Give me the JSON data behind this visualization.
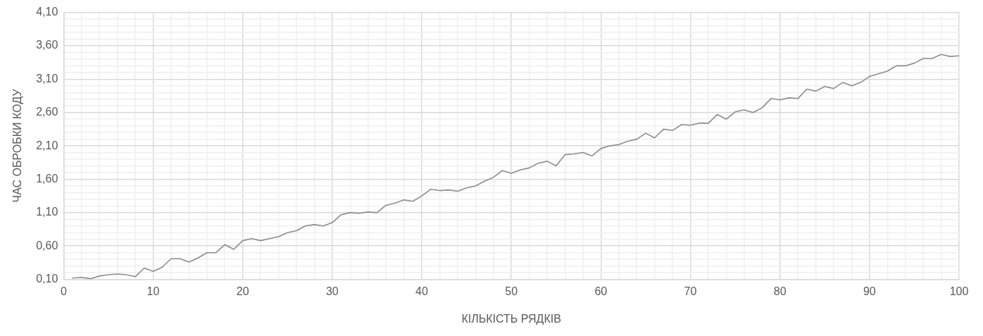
{
  "chart_data": {
    "type": "line",
    "xlabel": "КІЛЬКІСТЬ РЯДКІВ",
    "ylabel": "ЧАС ОБРОБКИ КОДУ",
    "x": [
      1,
      2,
      3,
      4,
      5,
      6,
      7,
      8,
      9,
      10,
      11,
      12,
      13,
      14,
      15,
      16,
      17,
      18,
      19,
      20,
      21,
      22,
      23,
      24,
      25,
      26,
      27,
      28,
      29,
      30,
      31,
      32,
      33,
      34,
      35,
      36,
      37,
      38,
      39,
      40,
      41,
      42,
      43,
      44,
      45,
      46,
      47,
      48,
      49,
      50,
      51,
      52,
      53,
      54,
      55,
      56,
      57,
      58,
      59,
      60,
      61,
      62,
      63,
      64,
      65,
      66,
      67,
      68,
      69,
      70,
      71,
      72,
      73,
      74,
      75,
      76,
      77,
      78,
      79,
      80,
      81,
      82,
      83,
      84,
      85,
      86,
      87,
      88,
      89,
      90,
      91,
      92,
      93,
      94,
      95,
      96,
      97,
      98,
      99,
      100
    ],
    "series": [
      {
        "color": "#8c8c8c",
        "values": [
          0.12,
          0.13,
          0.11,
          0.15,
          0.17,
          0.18,
          0.17,
          0.14,
          0.27,
          0.22,
          0.28,
          0.41,
          0.41,
          0.36,
          0.42,
          0.5,
          0.5,
          0.62,
          0.55,
          0.68,
          0.71,
          0.68,
          0.71,
          0.74,
          0.8,
          0.83,
          0.9,
          0.92,
          0.9,
          0.95,
          1.07,
          1.1,
          1.09,
          1.11,
          1.1,
          1.21,
          1.24,
          1.29,
          1.27,
          1.35,
          1.45,
          1.43,
          1.44,
          1.42,
          1.47,
          1.5,
          1.57,
          1.63,
          1.73,
          1.69,
          1.74,
          1.77,
          1.84,
          1.87,
          1.8,
          1.97,
          1.98,
          2.0,
          1.95,
          2.06,
          2.1,
          2.12,
          2.17,
          2.2,
          2.29,
          2.22,
          2.35,
          2.33,
          2.42,
          2.41,
          2.44,
          2.44,
          2.57,
          2.5,
          2.61,
          2.64,
          2.6,
          2.67,
          2.81,
          2.79,
          2.82,
          2.81,
          2.95,
          2.92,
          2.99,
          2.96,
          3.05,
          3.0,
          3.05,
          3.14,
          3.18,
          3.22,
          3.3,
          3.3,
          3.34,
          3.41,
          3.41,
          3.47,
          3.44,
          3.45
        ]
      }
    ],
    "xlim": [
      0,
      100
    ],
    "xticks": [
      0,
      {
        "value": 2,
        "label": null
      },
      {
        "value": 4,
        "label": null
      },
      {
        "value": 6,
        "label": null
      },
      {
        "value": 8,
        "label": null
      },
      10,
      {
        "value": 12,
        "label": null
      },
      {
        "value": 14,
        "label": null
      },
      {
        "value": 16,
        "label": null
      },
      {
        "value": 18,
        "label": null
      },
      20,
      {
        "value": 22,
        "label": null
      },
      {
        "value": 24,
        "label": null
      },
      {
        "value": 26,
        "label": null
      },
      {
        "value": 28,
        "label": null
      },
      30,
      {
        "value": 32,
        "label": null
      },
      {
        "value": 34,
        "label": null
      },
      {
        "value": 36,
        "label": null
      },
      {
        "value": 38,
        "label": null
      },
      40,
      {
        "value": 42,
        "label": null
      },
      {
        "value": 44,
        "label": null
      },
      {
        "value": 46,
        "label": null
      },
      {
        "value": 48,
        "label": null
      },
      50,
      {
        "value": 52,
        "label": null
      },
      {
        "value": 54,
        "label": null
      },
      {
        "value": 56,
        "label": null
      },
      {
        "value": 58,
        "label": null
      },
      60,
      {
        "value": 62,
        "label": null
      },
      {
        "value": 64,
        "label": null
      },
      {
        "value": 66,
        "label": null
      },
      {
        "value": 68,
        "label": null
      },
      70,
      {
        "value": 72,
        "label": null
      },
      {
        "value": 74,
        "label": null
      },
      {
        "value": 76,
        "label": null
      },
      {
        "value": 78,
        "label": null
      },
      80,
      {
        "value": 82,
        "label": null
      },
      {
        "value": 84,
        "label": null
      },
      {
        "value": 86,
        "label": null
      },
      {
        "value": 88,
        "label": null
      },
      90,
      {
        "value": 92,
        "label": null
      },
      {
        "value": 94,
        "label": null
      },
      {
        "value": 96,
        "label": null
      },
      {
        "value": 98,
        "label": null
      },
      100
    ],
    "ylim": [
      0.1,
      4.1
    ],
    "yticks": [
      {
        "value": 0.1,
        "label": "0,10"
      },
      {
        "value": 0.2,
        "label": null
      },
      {
        "value": 0.3,
        "label": null
      },
      {
        "value": 0.4,
        "label": null
      },
      {
        "value": 0.5,
        "label": null
      },
      {
        "value": 0.6,
        "label": "0,60"
      },
      {
        "value": 0.7,
        "label": null
      },
      {
        "value": 0.8,
        "label": null
      },
      {
        "value": 0.9,
        "label": null
      },
      {
        "value": 1.0,
        "label": null
      },
      {
        "value": 1.1,
        "label": "1,10"
      },
      {
        "value": 1.2,
        "label": null
      },
      {
        "value": 1.3,
        "label": null
      },
      {
        "value": 1.4,
        "label": null
      },
      {
        "value": 1.5,
        "label": null
      },
      {
        "value": 1.6,
        "label": "1,60"
      },
      {
        "value": 1.7,
        "label": null
      },
      {
        "value": 1.8,
        "label": null
      },
      {
        "value": 1.9,
        "label": null
      },
      {
        "value": 2.0,
        "label": null
      },
      {
        "value": 2.1,
        "label": "2,10"
      },
      {
        "value": 2.2,
        "label": null
      },
      {
        "value": 2.3,
        "label": null
      },
      {
        "value": 2.4,
        "label": null
      },
      {
        "value": 2.5,
        "label": null
      },
      {
        "value": 2.6,
        "label": "2,60"
      },
      {
        "value": 2.7,
        "label": null
      },
      {
        "value": 2.8,
        "label": null
      },
      {
        "value": 2.9,
        "label": null
      },
      {
        "value": 3.0,
        "label": null
      },
      {
        "value": 3.1,
        "label": "3,10"
      },
      {
        "value": 3.2,
        "label": null
      },
      {
        "value": 3.3,
        "label": null
      },
      {
        "value": 3.4,
        "label": null
      },
      {
        "value": 3.5,
        "label": null
      },
      {
        "value": 3.6,
        "label": "3,60"
      },
      {
        "value": 3.7,
        "label": null
      },
      {
        "value": 3.8,
        "label": null
      },
      {
        "value": 3.9,
        "label": null
      },
      {
        "value": 4.0,
        "label": null
      },
      {
        "value": 4.1,
        "label": "4,10"
      }
    ],
    "grid": true,
    "marker": "none",
    "line_style": "solid",
    "legend": false
  }
}
